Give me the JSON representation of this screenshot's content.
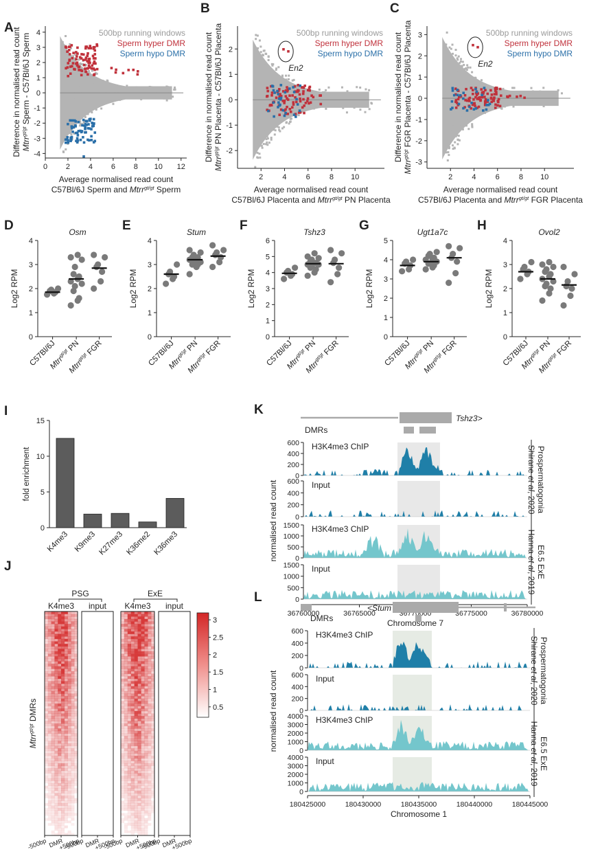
{
  "colors": {
    "gray": "#b4b4b4",
    "red": "#c0313b",
    "blue": "#2a6fa8",
    "dark": "#222222",
    "dotgray": "#7a7a7a",
    "barfill": "#5c5c5c",
    "teal_dark": "#1f7fa8",
    "teal_light": "#74c6cc",
    "shade": "#e8e8e8",
    "shade_green": "#e6ebe4",
    "heat_hi": "#d73a3a"
  },
  "panels": {
    "A": "A",
    "B": "B",
    "C": "C",
    "D": "D",
    "E": "E",
    "F": "F",
    "G": "G",
    "H": "H",
    "I": "I",
    "J": "J",
    "K": "K",
    "L": "L"
  },
  "scatter_legend": {
    "windows": "500bp running windows",
    "hyper": "Sperm hyper DMR",
    "hypo": "Sperm hypo DMR"
  },
  "label_en2": "En2",
  "chart_data": [
    {
      "id": "A",
      "type": "scatter",
      "title": "",
      "xlabel": "Average normalised read count",
      "xlabel2_pre": "C57Bl/6J Sperm and ",
      "xlabel2_it": "Mtrr",
      "xlabel2_sup": "gt/gt",
      "xlabel2_post": " Sperm",
      "ylabel1": "Difference in normalised read count",
      "ylabel2_it": "Mtrr",
      "ylabel2_sup": "gt/gt",
      "ylabel2_post": " Sperm - C57Bl/6J Sperm",
      "xlim": [
        0,
        12.5
      ],
      "ylim": [
        -4.3,
        4.4
      ],
      "xticks": [
        0,
        2,
        4,
        6,
        8,
        10,
        12
      ],
      "yticks": [
        -4,
        -3,
        -2,
        -1,
        0,
        1,
        2,
        3,
        4
      ],
      "series": [
        {
          "name": "500bp running windows"
        },
        {
          "name": "Sperm hyper DMR"
        },
        {
          "name": "Sperm hypo DMR"
        }
      ]
    },
    {
      "id": "B",
      "type": "scatter",
      "title": "",
      "xlabel": "Average normalised read count",
      "xlabel2_pre": "C57Bl/6J Placenta and ",
      "xlabel2_it": "Mtrr",
      "xlabel2_sup": "gt/gt",
      "xlabel2_post": " PN Placenta",
      "ylabel1": "Difference in normalised read count",
      "ylabel2_it": "Mtrr",
      "ylabel2_sup": "gt/gt",
      "ylabel2_post": " PN Placenta - C57Bl/6J Placenta",
      "xlim": [
        0,
        12.5
      ],
      "ylim": [
        -2.7,
        2.9
      ],
      "xticks": [
        2,
        4,
        6,
        8,
        10
      ],
      "yticks": [
        -2,
        -1,
        0,
        1,
        2
      ],
      "series": [
        {
          "name": "500bp running windows"
        },
        {
          "name": "Sperm hyper DMR"
        },
        {
          "name": "Sperm hypo DMR"
        }
      ]
    },
    {
      "id": "C",
      "type": "scatter",
      "title": "",
      "xlabel": "Average normalised read count",
      "xlabel2_pre": "C57Bl/6J Placenta and ",
      "xlabel2_it": "Mtrr",
      "xlabel2_sup": "gt/gt",
      "xlabel2_post": " FGR Placenta",
      "ylabel1": "Difference in normalised read count",
      "ylabel2_it": "Mtrr",
      "ylabel2_sup": "gt/gt",
      "ylabel2_post": " FGR Placenta - C57Bl/6J Placenta",
      "xlim": [
        0,
        12.5
      ],
      "ylim": [
        -3.3,
        3.4
      ],
      "xticks": [
        2,
        4,
        6,
        8,
        10
      ],
      "yticks": [
        -3,
        -2,
        -1,
        0,
        1,
        2,
        3
      ],
      "series": [
        {
          "name": "500bp running windows"
        },
        {
          "name": "Sperm hyper DMR"
        },
        {
          "name": "Sperm hypo DMR"
        }
      ]
    },
    {
      "id": "D",
      "type": "scatter",
      "title": "Osm",
      "ylabel": "Log2 RPM",
      "ylim": [
        0,
        4
      ],
      "yticks": [
        0,
        1,
        2,
        3,
        4
      ],
      "categories": [
        "C57Bl/6J",
        "PN",
        "FGR"
      ],
      "medians": [
        1.85,
        2.4,
        2.85
      ],
      "points": [
        [
          1.75,
          1.85,
          1.9,
          2.0,
          1.8,
          1.95
        ],
        [
          1.3,
          1.5,
          1.9,
          2.1,
          2.3,
          2.4,
          2.5,
          2.6,
          2.9,
          3.2,
          3.3,
          3.4,
          2.2,
          1.6
        ],
        [
          2.0,
          2.3,
          2.7,
          2.9,
          3.0,
          3.3,
          3.4
        ]
      ]
    },
    {
      "id": "E",
      "type": "scatter",
      "title": "Stum",
      "ylabel": "Log2 RPM",
      "ylim": [
        0,
        4
      ],
      "yticks": [
        0,
        1,
        2,
        3,
        4
      ],
      "categories": [
        "C57Bl/6J",
        "PN",
        "FGR"
      ],
      "medians": [
        2.6,
        3.2,
        3.35
      ],
      "points": [
        [
          2.2,
          2.4,
          2.6,
          2.7,
          3.0,
          2.5
        ],
        [
          2.6,
          2.9,
          3.0,
          3.1,
          3.2,
          3.2,
          3.3,
          3.3,
          3.4,
          3.5,
          3.6,
          3.1,
          3.0
        ],
        [
          2.9,
          3.1,
          3.3,
          3.4,
          3.5,
          3.8,
          3.6
        ]
      ]
    },
    {
      "id": "F",
      "type": "scatter",
      "title": "Tshz3",
      "ylabel": "Log2 RPM",
      "ylim": [
        0,
        6
      ],
      "yticks": [
        0,
        1,
        2,
        3,
        4,
        5,
        6
      ],
      "categories": [
        "C57Bl/6J",
        "PN",
        "FGR"
      ],
      "medians": [
        3.95,
        4.55,
        4.55
      ],
      "points": [
        [
          3.6,
          3.8,
          3.9,
          4.0,
          4.1,
          4.3
        ],
        [
          3.8,
          4.0,
          4.2,
          4.3,
          4.4,
          4.5,
          4.6,
          4.7,
          4.8,
          5.0,
          5.2,
          4.5,
          4.6,
          4.9
        ],
        [
          3.4,
          3.9,
          4.3,
          4.6,
          4.8,
          5.2,
          5.4
        ]
      ]
    },
    {
      "id": "G",
      "type": "scatter",
      "title": "Ugt1a7c",
      "ylabel": "Log2 RPM",
      "ylim": [
        0,
        5
      ],
      "yticks": [
        0,
        1,
        2,
        3,
        4,
        5
      ],
      "categories": [
        "C57Bl/6J",
        "PN",
        "FGR"
      ],
      "medians": [
        3.7,
        3.9,
        4.1
      ],
      "points": [
        [
          3.4,
          3.5,
          3.7,
          3.8,
          3.9,
          4.0
        ],
        [
          3.5,
          3.7,
          3.8,
          3.9,
          4.0,
          4.0,
          4.1,
          4.2,
          4.4,
          3.6,
          3.8,
          4.3
        ],
        [
          2.8,
          3.3,
          3.9,
          4.1,
          4.3,
          4.6,
          4.7
        ]
      ]
    },
    {
      "id": "H",
      "type": "scatter",
      "title": "Ovol2",
      "ylabel": "Log2 RPM",
      "ylim": [
        0,
        4
      ],
      "yticks": [
        0,
        1,
        2,
        3,
        4
      ],
      "categories": [
        "C57Bl/6J",
        "PN",
        "FGR"
      ],
      "medians": [
        2.7,
        2.4,
        2.15
      ],
      "points": [
        [
          2.4,
          2.6,
          2.7,
          2.8,
          2.9,
          3.1
        ],
        [
          1.5,
          1.8,
          2.0,
          2.2,
          2.3,
          2.4,
          2.5,
          2.6,
          2.7,
          2.8,
          2.9,
          3.0,
          3.1,
          2.1
        ],
        [
          1.3,
          1.7,
          2.0,
          2.1,
          2.3,
          2.6,
          2.9
        ]
      ]
    },
    {
      "id": "I",
      "type": "bar",
      "ylabel": "fold enrichment",
      "categories": [
        "K4me3",
        "K9me3",
        "K27me3",
        "K36me2",
        "K36me3"
      ],
      "values": [
        12.5,
        1.9,
        2.0,
        0.8,
        4.1
      ],
      "ylim": [
        0,
        15
      ],
      "yticks": [
        0,
        5,
        10,
        15
      ]
    },
    {
      "id": "J",
      "type": "heatmap",
      "ylabel_it": "Mtrr",
      "ylabel_sup": "gt/gt",
      "ylabel_post": " DMRs",
      "groups": [
        "PSG",
        "ExE"
      ],
      "columns": [
        "K4me3",
        "input",
        "K4me3",
        "input"
      ],
      "xticks": [
        "-500bp",
        "DMR",
        "+500bp"
      ],
      "colorbar": [
        3,
        2.5,
        2,
        1.5,
        1,
        0.5
      ]
    },
    {
      "id": "K",
      "type": "area",
      "gene": "Tshz3>",
      "dmr_label": "DMRs",
      "ylabel": "normalised read count",
      "xlabel": "Chromosome 7",
      "xticks": [
        "36760000",
        "36765000",
        "36770000",
        "36775000",
        "36780000"
      ],
      "tracks": [
        {
          "name": "H3K4me3 ChIP",
          "yticks": [
            0,
            200,
            400,
            600
          ]
        },
        {
          "name": "Input",
          "yticks": [
            0,
            200,
            400,
            600
          ]
        },
        {
          "name": "H3K4me3 ChIP",
          "yticks": [
            0,
            500,
            1000,
            1500
          ]
        },
        {
          "name": "Input",
          "yticks": [
            0,
            500,
            1000,
            1500
          ]
        }
      ],
      "group1": "Prospermatogonia",
      "group1b_pre": "Shirane ",
      "group1b_it": "et al",
      "group1b_post": ", 2020",
      "group2": "E6.5 ExE",
      "group2b_pre": "Hanna ",
      "group2b_it": "et al",
      "group2b_post": ", 2019"
    },
    {
      "id": "L",
      "type": "area",
      "gene": "<Stum",
      "dmr_label": "DMRs",
      "ylabel": "normalised read count",
      "xlabel": "Chromosome 1",
      "xticks": [
        "180425000",
        "180430000",
        "180435000",
        "180440000",
        "180445000"
      ],
      "tracks": [
        {
          "name": "H3K4me3 ChIP",
          "yticks": [
            0,
            200,
            400,
            600
          ]
        },
        {
          "name": "Input",
          "yticks": [
            0,
            200,
            400,
            600
          ]
        },
        {
          "name": "H3K4me3 ChIP",
          "yticks": [
            0,
            1000,
            2000,
            3000,
            4000
          ]
        },
        {
          "name": "Input",
          "yticks": [
            0,
            1000,
            2000,
            3000,
            4000
          ]
        }
      ],
      "group1": "Prospermatogonia",
      "group1b_pre": "Shirane ",
      "group1b_it": "et al",
      "group1b_post": ", 2020",
      "group2": "E6.5 ExE",
      "group2b_pre": "Hanna ",
      "group2b_it": "et al",
      "group2b_post": ", 2019"
    }
  ]
}
